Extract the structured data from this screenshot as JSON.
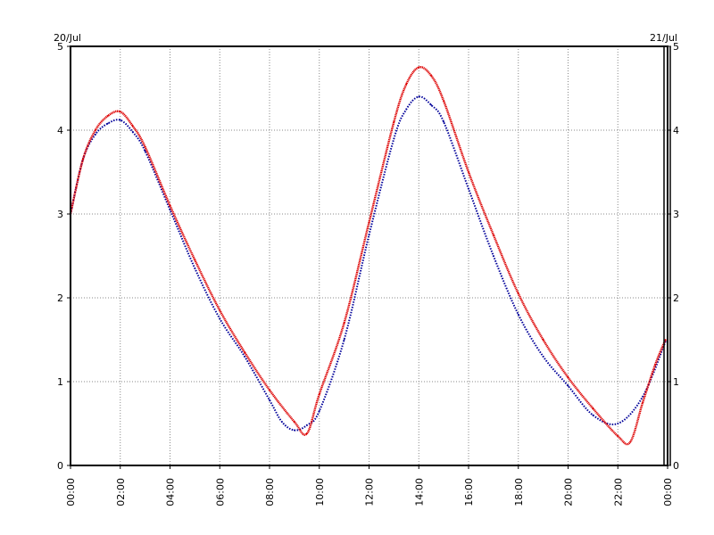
{
  "chart_data": {
    "type": "line",
    "title": "",
    "xlabel": "",
    "ylabel": "",
    "date_start_label": "20/Jul",
    "date_end_label": "21/Jul",
    "x_ticks": [
      "00:00",
      "02:00",
      "04:00",
      "06:00",
      "08:00",
      "10:00",
      "12:00",
      "14:00",
      "16:00",
      "18:00",
      "20:00",
      "22:00",
      "00:00"
    ],
    "y_ticks": [
      "0",
      "1",
      "2",
      "3",
      "4",
      "5"
    ],
    "xlim": [
      "00:00",
      "24:00"
    ],
    "ylim": [
      0,
      5
    ],
    "grid": true,
    "series": [
      {
        "color": "#dd0000",
        "style": "dotted-dense",
        "x": [
          "00:00",
          "00:30",
          "01:00",
          "01:30",
          "02:00",
          "02:30",
          "03:00",
          "04:00",
          "05:00",
          "06:00",
          "07:00",
          "08:00",
          "09:00",
          "09:30",
          "10:00",
          "11:00",
          "12:00",
          "13:00",
          "13:30",
          "14:00",
          "14:30",
          "15:00",
          "16:00",
          "17:00",
          "18:00",
          "19:00",
          "20:00",
          "21:00",
          "22:00",
          "22:30",
          "23:00",
          "23:30",
          "23:55"
        ],
        "values": [
          3.0,
          3.65,
          4.0,
          4.17,
          4.22,
          4.05,
          3.8,
          3.1,
          2.45,
          1.85,
          1.35,
          0.9,
          0.52,
          0.38,
          0.85,
          1.7,
          2.9,
          4.1,
          4.55,
          4.75,
          4.65,
          4.35,
          3.5,
          2.75,
          2.05,
          1.5,
          1.05,
          0.68,
          0.35,
          0.28,
          0.75,
          1.2,
          1.5
        ]
      },
      {
        "color": "#000099",
        "style": "dotted",
        "x": [
          "00:00",
          "00:30",
          "01:00",
          "01:30",
          "02:00",
          "02:30",
          "03:00",
          "04:00",
          "05:00",
          "06:00",
          "07:00",
          "08:00",
          "08:30",
          "09:00",
          "09:30",
          "10:00",
          "11:00",
          "12:00",
          "13:00",
          "13:30",
          "14:00",
          "14:30",
          "15:00",
          "16:00",
          "17:00",
          "18:00",
          "19:00",
          "20:00",
          "21:00",
          "22:00",
          "23:00",
          "23:55"
        ],
        "values": [
          3.0,
          3.65,
          3.95,
          4.08,
          4.12,
          3.98,
          3.75,
          3.05,
          2.35,
          1.75,
          1.3,
          0.78,
          0.52,
          0.42,
          0.48,
          0.65,
          1.5,
          2.75,
          3.9,
          4.25,
          4.4,
          4.3,
          4.1,
          3.3,
          2.5,
          1.8,
          1.3,
          0.95,
          0.6,
          0.5,
          0.82,
          1.48
        ]
      }
    ]
  }
}
